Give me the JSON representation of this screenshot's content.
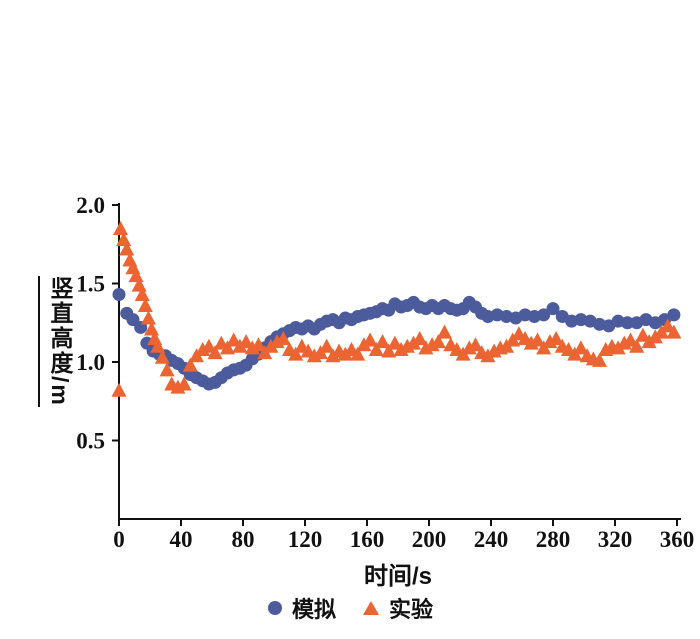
{
  "chart_data": {
    "type": "scatter",
    "title": "",
    "xlabel": "时间/s",
    "ylabel": "竖直高度/m",
    "xlim": [
      0,
      360
    ],
    "ylim": [
      0,
      2.0
    ],
    "x_ticks": [
      0,
      40,
      80,
      120,
      160,
      200,
      240,
      280,
      320,
      360
    ],
    "x_tick_labels": [
      "0",
      "40",
      "80",
      "120",
      "160",
      "200",
      "240",
      "280",
      "320",
      "360"
    ],
    "y_ticks": [
      0.5,
      1.0,
      1.5,
      2.0
    ],
    "y_tick_labels": [
      "0.5",
      "1.0",
      "1.5",
      "2.0"
    ],
    "grid": false,
    "legend_position": "bottom",
    "axis_color": "#111111",
    "background": "#ffffff",
    "series": [
      {
        "id": "simulation",
        "name": "模拟",
        "marker": "circle",
        "color": "#4B5B9C",
        "points": [
          [
            0,
            1.43
          ],
          [
            5,
            1.31
          ],
          [
            9,
            1.27
          ],
          [
            14,
            1.22
          ],
          [
            18,
            1.12
          ],
          [
            22,
            1.07
          ],
          [
            26,
            1.05
          ],
          [
            30,
            1.04
          ],
          [
            34,
            1.01
          ],
          [
            38,
            0.99
          ],
          [
            42,
            0.96
          ],
          [
            46,
            0.92
          ],
          [
            50,
            0.9
          ],
          [
            54,
            0.88
          ],
          [
            58,
            0.86
          ],
          [
            62,
            0.87
          ],
          [
            66,
            0.9
          ],
          [
            70,
            0.93
          ],
          [
            74,
            0.95
          ],
          [
            78,
            0.96
          ],
          [
            82,
            0.98
          ],
          [
            86,
            1.02
          ],
          [
            90,
            1.05
          ],
          [
            94,
            1.09
          ],
          [
            98,
            1.13
          ],
          [
            102,
            1.16
          ],
          [
            106,
            1.18
          ],
          [
            110,
            1.2
          ],
          [
            114,
            1.22
          ],
          [
            118,
            1.21
          ],
          [
            122,
            1.23
          ],
          [
            126,
            1.21
          ],
          [
            130,
            1.24
          ],
          [
            134,
            1.26
          ],
          [
            138,
            1.27
          ],
          [
            142,
            1.25
          ],
          [
            146,
            1.28
          ],
          [
            150,
            1.27
          ],
          [
            154,
            1.29
          ],
          [
            158,
            1.3
          ],
          [
            162,
            1.31
          ],
          [
            166,
            1.32
          ],
          [
            170,
            1.34
          ],
          [
            174,
            1.33
          ],
          [
            178,
            1.37
          ],
          [
            182,
            1.35
          ],
          [
            186,
            1.36
          ],
          [
            190,
            1.38
          ],
          [
            194,
            1.35
          ],
          [
            198,
            1.34
          ],
          [
            202,
            1.36
          ],
          [
            206,
            1.34
          ],
          [
            210,
            1.36
          ],
          [
            214,
            1.34
          ],
          [
            218,
            1.33
          ],
          [
            222,
            1.34
          ],
          [
            226,
            1.38
          ],
          [
            230,
            1.35
          ],
          [
            234,
            1.31
          ],
          [
            238,
            1.29
          ],
          [
            244,
            1.3
          ],
          [
            250,
            1.29
          ],
          [
            256,
            1.28
          ],
          [
            262,
            1.3
          ],
          [
            268,
            1.29
          ],
          [
            274,
            1.3
          ],
          [
            280,
            1.34
          ],
          [
            286,
            1.29
          ],
          [
            292,
            1.26
          ],
          [
            298,
            1.27
          ],
          [
            304,
            1.26
          ],
          [
            310,
            1.24
          ],
          [
            316,
            1.23
          ],
          [
            322,
            1.26
          ],
          [
            328,
            1.25
          ],
          [
            334,
            1.25
          ],
          [
            340,
            1.27
          ],
          [
            346,
            1.25
          ],
          [
            352,
            1.27
          ],
          [
            358,
            1.3
          ]
        ]
      },
      {
        "id": "experiment",
        "name": "实验",
        "marker": "triangle",
        "color": "#EB6432",
        "points": [
          [
            0,
            0.82
          ],
          [
            1,
            1.85
          ],
          [
            3,
            1.78
          ],
          [
            5,
            1.72
          ],
          [
            7,
            1.65
          ],
          [
            9,
            1.6
          ],
          [
            11,
            1.55
          ],
          [
            13,
            1.49
          ],
          [
            15,
            1.43
          ],
          [
            17,
            1.36
          ],
          [
            19,
            1.28
          ],
          [
            21,
            1.21
          ],
          [
            23,
            1.15
          ],
          [
            25,
            1.1
          ],
          [
            28,
            1.03
          ],
          [
            31,
            0.95
          ],
          [
            34,
            0.86
          ],
          [
            38,
            0.84
          ],
          [
            42,
            0.86
          ],
          [
            46,
            0.98
          ],
          [
            50,
            1.04
          ],
          [
            54,
            1.08
          ],
          [
            58,
            1.1
          ],
          [
            62,
            1.06
          ],
          [
            66,
            1.12
          ],
          [
            70,
            1.09
          ],
          [
            74,
            1.14
          ],
          [
            78,
            1.1
          ],
          [
            82,
            1.13
          ],
          [
            86,
            1.09
          ],
          [
            90,
            1.11
          ],
          [
            94,
            1.06
          ],
          [
            98,
            1.1
          ],
          [
            102,
            1.13
          ],
          [
            106,
            1.15
          ],
          [
            110,
            1.08
          ],
          [
            114,
            1.05
          ],
          [
            118,
            1.1
          ],
          [
            122,
            1.07
          ],
          [
            126,
            1.04
          ],
          [
            130,
            1.06
          ],
          [
            134,
            1.1
          ],
          [
            138,
            1.04
          ],
          [
            142,
            1.07
          ],
          [
            146,
            1.05
          ],
          [
            150,
            1.08
          ],
          [
            154,
            1.05
          ],
          [
            158,
            1.11
          ],
          [
            162,
            1.14
          ],
          [
            166,
            1.08
          ],
          [
            170,
            1.13
          ],
          [
            174,
            1.07
          ],
          [
            178,
            1.12
          ],
          [
            182,
            1.08
          ],
          [
            186,
            1.1
          ],
          [
            190,
            1.12
          ],
          [
            194,
            1.15
          ],
          [
            198,
            1.09
          ],
          [
            202,
            1.11
          ],
          [
            206,
            1.13
          ],
          [
            210,
            1.19
          ],
          [
            214,
            1.11
          ],
          [
            218,
            1.08
          ],
          [
            222,
            1.05
          ],
          [
            226,
            1.09
          ],
          [
            230,
            1.11
          ],
          [
            234,
            1.06
          ],
          [
            238,
            1.04
          ],
          [
            242,
            1.07
          ],
          [
            246,
            1.09
          ],
          [
            250,
            1.1
          ],
          [
            254,
            1.14
          ],
          [
            258,
            1.18
          ],
          [
            262,
            1.15
          ],
          [
            266,
            1.12
          ],
          [
            270,
            1.14
          ],
          [
            274,
            1.09
          ],
          [
            278,
            1.13
          ],
          [
            282,
            1.15
          ],
          [
            286,
            1.1
          ],
          [
            290,
            1.08
          ],
          [
            294,
            1.05
          ],
          [
            298,
            1.09
          ],
          [
            302,
            1.04
          ],
          [
            306,
            1.02
          ],
          [
            310,
            1.01
          ],
          [
            314,
            1.08
          ],
          [
            318,
            1.1
          ],
          [
            322,
            1.09
          ],
          [
            326,
            1.12
          ],
          [
            330,
            1.14
          ],
          [
            334,
            1.1
          ],
          [
            338,
            1.17
          ],
          [
            342,
            1.13
          ],
          [
            346,
            1.16
          ],
          [
            350,
            1.19
          ],
          [
            354,
            1.23
          ],
          [
            358,
            1.19
          ]
        ]
      }
    ]
  }
}
